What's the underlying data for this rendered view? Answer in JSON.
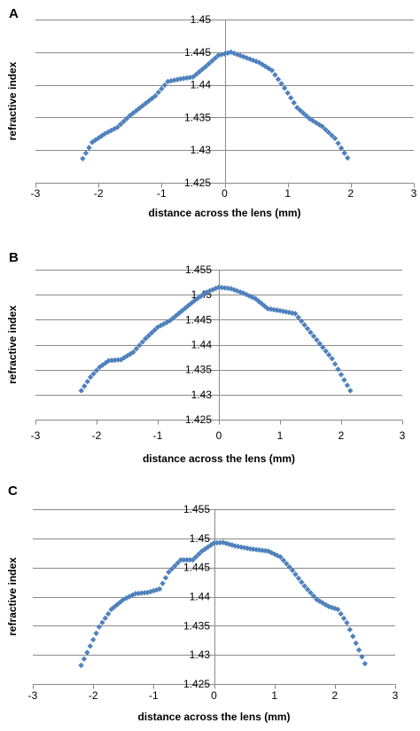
{
  "colors": {
    "marker": "#4f81bd",
    "grid": "#8a8a8a",
    "text": "#000000"
  },
  "chart_data": [
    {
      "type": "scatter",
      "panel_label": "A",
      "xlabel": "distance across the lens (mm)",
      "ylabel": "refractive index",
      "xlim": [
        -3,
        3
      ],
      "ylim": [
        1.425,
        1.45
      ],
      "xticks": [
        -3,
        -2,
        -1,
        0,
        1,
        2,
        3
      ],
      "yticks": [
        1.425,
        1.43,
        1.435,
        1.44,
        1.445,
        1.45
      ],
      "xtick_labels": [
        "-3",
        "-2",
        "-1",
        "0",
        "1",
        "2",
        "3"
      ],
      "ytick_labels": [
        "1.425",
        "1.43",
        "1.435",
        "1.44",
        "1.445",
        "1.45"
      ],
      "grid": "horizontal",
      "marker": "diamond",
      "x_range": [
        -2.25,
        1.95
      ],
      "curve": [
        [
          -2.25,
          1.4287
        ],
        [
          -2.1,
          1.4312
        ],
        [
          -1.9,
          1.4325
        ],
        [
          -1.7,
          1.4335
        ],
        [
          -1.5,
          1.4353
        ],
        [
          -1.3,
          1.4368
        ],
        [
          -1.1,
          1.4383
        ],
        [
          -0.9,
          1.4405
        ],
        [
          -0.7,
          1.4409
        ],
        [
          -0.5,
          1.4412
        ],
        [
          -0.3,
          1.4428
        ],
        [
          -0.1,
          1.4445
        ],
        [
          0.1,
          1.445
        ],
        [
          0.3,
          1.4443
        ],
        [
          0.55,
          1.4434
        ],
        [
          0.75,
          1.4422
        ],
        [
          0.95,
          1.4395
        ],
        [
          1.15,
          1.4365
        ],
        [
          1.35,
          1.4348
        ],
        [
          1.55,
          1.4336
        ],
        [
          1.75,
          1.4318
        ],
        [
          1.95,
          1.4288
        ]
      ]
    },
    {
      "type": "scatter",
      "panel_label": "B",
      "xlabel": "distance across the lens (mm)",
      "ylabel": "refractive index",
      "xlim": [
        -3,
        3
      ],
      "ylim": [
        1.425,
        1.455
      ],
      "xticks": [
        -3,
        -2,
        -1,
        0,
        1,
        2,
        3
      ],
      "yticks": [
        1.425,
        1.43,
        1.435,
        1.44,
        1.445,
        1.45,
        1.455
      ],
      "xtick_labels": [
        "-3",
        "-2",
        "-1",
        "0",
        "1",
        "2",
        "3"
      ],
      "ytick_labels": [
        "1.425",
        "1.43",
        "1.435",
        "1.44",
        "1.445",
        "1.45",
        "1.455"
      ],
      "grid": "horizontal",
      "marker": "diamond",
      "x_range": [
        -2.25,
        2.15
      ],
      "curve": [
        [
          -2.25,
          1.4308
        ],
        [
          -2.1,
          1.4335
        ],
        [
          -1.95,
          1.4355
        ],
        [
          -1.8,
          1.4368
        ],
        [
          -1.6,
          1.437
        ],
        [
          -1.4,
          1.4385
        ],
        [
          -1.2,
          1.4412
        ],
        [
          -1.0,
          1.4435
        ],
        [
          -0.8,
          1.4448
        ],
        [
          -0.6,
          1.4468
        ],
        [
          -0.4,
          1.4488
        ],
        [
          -0.2,
          1.4505
        ],
        [
          0.0,
          1.4515
        ],
        [
          0.2,
          1.4512
        ],
        [
          0.4,
          1.4503
        ],
        [
          0.6,
          1.4492
        ],
        [
          0.8,
          1.4472
        ],
        [
          1.0,
          1.4468
        ],
        [
          1.25,
          1.4462
        ],
        [
          1.45,
          1.4432
        ],
        [
          1.65,
          1.4402
        ],
        [
          1.85,
          1.4372
        ],
        [
          2.0,
          1.434
        ],
        [
          2.15,
          1.4308
        ]
      ]
    },
    {
      "type": "scatter",
      "panel_label": "C",
      "xlabel": "distance across the lens (mm)",
      "ylabel": "refractive index",
      "xlim": [
        -3,
        3
      ],
      "ylim": [
        1.425,
        1.455
      ],
      "xticks": [
        -3,
        -2,
        -1,
        0,
        1,
        2,
        3
      ],
      "yticks": [
        1.425,
        1.43,
        1.435,
        1.44,
        1.445,
        1.45,
        1.455
      ],
      "xtick_labels": [
        "-3",
        "-2",
        "-1",
        "0",
        "1",
        "2",
        "3"
      ],
      "ytick_labels": [
        "1.425",
        "1.43",
        "1.435",
        "1.44",
        "1.445",
        "1.45",
        "1.455"
      ],
      "grid": "horizontal",
      "marker": "diamond",
      "x_range": [
        -2.2,
        2.5
      ],
      "curve": [
        [
          -2.2,
          1.4282
        ],
        [
          -2.05,
          1.4315
        ],
        [
          -1.9,
          1.4348
        ],
        [
          -1.7,
          1.4378
        ],
        [
          -1.5,
          1.4395
        ],
        [
          -1.3,
          1.4405
        ],
        [
          -1.1,
          1.4407
        ],
        [
          -0.9,
          1.4413
        ],
        [
          -0.75,
          1.4442
        ],
        [
          -0.55,
          1.4463
        ],
        [
          -0.35,
          1.4463
        ],
        [
          -0.2,
          1.4478
        ],
        [
          0.0,
          1.4492
        ],
        [
          0.15,
          1.4493
        ],
        [
          0.35,
          1.4487
        ],
        [
          0.6,
          1.4482
        ],
        [
          0.9,
          1.4478
        ],
        [
          1.1,
          1.4468
        ],
        [
          1.3,
          1.4445
        ],
        [
          1.5,
          1.4418
        ],
        [
          1.7,
          1.4395
        ],
        [
          1.9,
          1.4383
        ],
        [
          2.05,
          1.4378
        ],
        [
          2.2,
          1.4355
        ],
        [
          2.35,
          1.432
        ],
        [
          2.5,
          1.4285
        ]
      ]
    }
  ]
}
